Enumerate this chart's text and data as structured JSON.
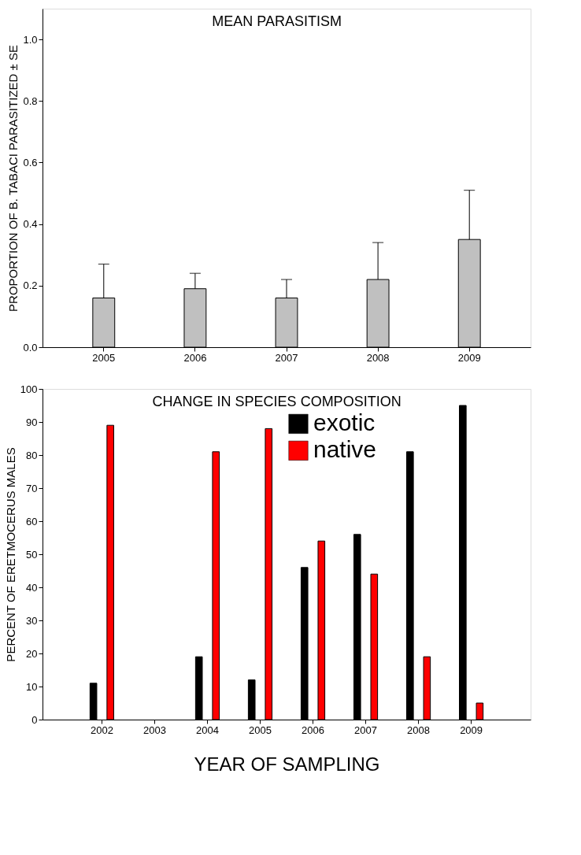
{
  "chart_data": [
    {
      "type": "bar",
      "title": "MEAN PARASITISM",
      "ylabel": "PROPORTION OF B. TABACI PARASITIZED ± SE",
      "categories": [
        "2005",
        "2006",
        "2007",
        "2008",
        "2009"
      ],
      "values": [
        0.16,
        0.19,
        0.16,
        0.22,
        0.35
      ],
      "color": "#c0c0c0",
      "errors": [
        [
          0.16,
          0.27
        ],
        [
          0.19,
          0.24
        ],
        [
          0.16,
          0.22
        ],
        [
          0.22,
          0.34
        ],
        [
          0.35,
          0.51
        ]
      ],
      "ylim": [
        0,
        1.1
      ],
      "yticks": [
        {
          "value": 0,
          "label": "0.0"
        },
        {
          "value": 0.2,
          "label": "0.2"
        },
        {
          "value": 0.4,
          "label": "0.4"
        },
        {
          "value": 0.6,
          "label": "0.6"
        },
        {
          "value": 0.8,
          "label": "0.8"
        },
        {
          "value": 1.0,
          "label": "1.0"
        }
      ],
      "grid": false,
      "legend": false
    },
    {
      "type": "bar",
      "title": "CHANGE IN SPECIES COMPOSITION",
      "xlabel": "YEAR OF SAMPLING",
      "ylabel": "PERCENT OF ERETMOCERUS MALES",
      "categories": [
        "2002",
        "2003",
        "2004",
        "2005",
        "2006",
        "2007",
        "2008",
        "2009"
      ],
      "series": [
        {
          "name": "exotic",
          "color": "#000000",
          "values": [
            11,
            null,
            19,
            12,
            46,
            56,
            81,
            95
          ]
        },
        {
          "name": "native",
          "color": "#ff0000",
          "values": [
            89,
            null,
            81,
            88,
            54,
            44,
            19,
            5
          ]
        }
      ],
      "ylim": [
        0,
        100
      ],
      "yticks": [
        0,
        10,
        20,
        30,
        40,
        50,
        60,
        70,
        80,
        90,
        100
      ],
      "grid": false,
      "legend": "top"
    }
  ]
}
